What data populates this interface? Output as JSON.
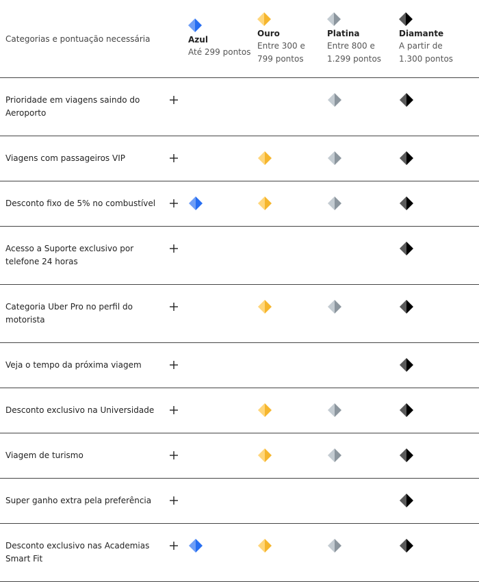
{
  "header": {
    "label": "Categorias e pontuação necessária",
    "tiers": [
      {
        "name": "Azul",
        "points": "Até 299 pontos",
        "color": "#276ef1",
        "shade": "#6f9ef6"
      },
      {
        "name": "Ouro",
        "points": "Entre 300 e 799 pontos",
        "color": "#f5b62e",
        "shade": "#ffd67a"
      },
      {
        "name": "Platina",
        "points": "Entre 800 e 1.299 pontos",
        "color": "#8c969e",
        "shade": "#c3cbd1"
      },
      {
        "name": "Diamante",
        "points": "A partir de 1.300 pontos",
        "color": "#000000",
        "shade": "#5a5a5a"
      }
    ]
  },
  "rows": [
    {
      "label": "Prioridade em viagens saindo do Aeroporto",
      "available": [
        false,
        false,
        true,
        true
      ]
    },
    {
      "label": "Viagens com passageiros VIP",
      "available": [
        false,
        true,
        true,
        true
      ]
    },
    {
      "label": "Desconto fixo de 5% no combustível",
      "available": [
        true,
        true,
        true,
        true
      ]
    },
    {
      "label": "Acesso a Suporte exclusivo por telefone 24 horas",
      "available": [
        false,
        false,
        false,
        true
      ]
    },
    {
      "label": "Categoria Uber Pro no perfil do motorista",
      "available": [
        false,
        true,
        true,
        true
      ]
    },
    {
      "label": "Veja o tempo da próxima viagem",
      "available": [
        false,
        false,
        false,
        true
      ]
    },
    {
      "label": "Desconto exclusivo na Universidade",
      "available": [
        false,
        true,
        true,
        true
      ]
    },
    {
      "label": "Viagem de turismo",
      "available": [
        false,
        true,
        true,
        true
      ]
    },
    {
      "label": "Super ganho extra pela preferência",
      "available": [
        false,
        false,
        false,
        true
      ]
    },
    {
      "label": "Desconto exclusivo nas Academias Smart Fit",
      "available": [
        true,
        true,
        true,
        true
      ]
    }
  ]
}
